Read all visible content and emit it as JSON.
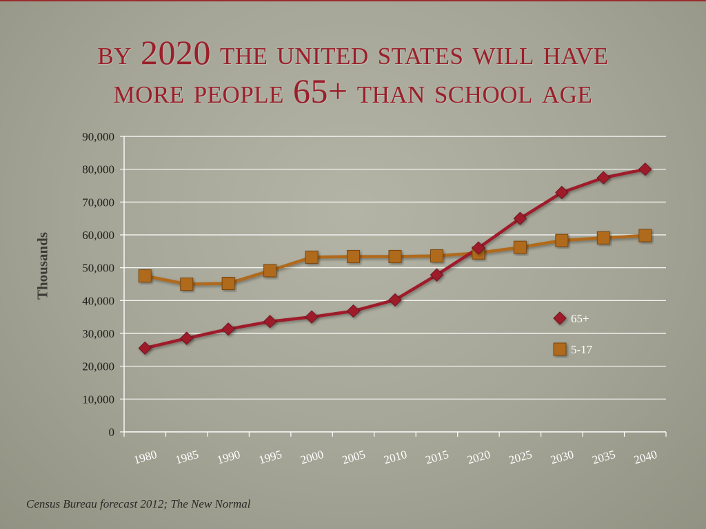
{
  "slide": {
    "title_line1": "By 2020 the United States will have",
    "title_line2": "more people 65+ than school age",
    "source": "Census Bureau forecast 2012; The New Normal"
  },
  "colors": {
    "series_65": "#9e1b2b",
    "series_517": "#b06a1e",
    "title": "#9a1f2a",
    "gridline": "#ffffff"
  },
  "chart_data": {
    "type": "line",
    "ylabel": "Thousands",
    "xlabel": "",
    "ylim": [
      0,
      90000
    ],
    "yticks": [
      0,
      10000,
      20000,
      30000,
      40000,
      50000,
      60000,
      70000,
      80000,
      90000
    ],
    "ytick_labels": [
      "0",
      "10,000",
      "20,000",
      "30,000",
      "40,000",
      "50,000",
      "60,000",
      "70,000",
      "80,000",
      "90,000"
    ],
    "categories": [
      "1980",
      "1985",
      "1990",
      "1995",
      "2000",
      "2005",
      "2010",
      "2015",
      "2020",
      "2025",
      "2030",
      "2035",
      "2040"
    ],
    "grid": true,
    "legend_position": "right",
    "series": [
      {
        "name": "65+",
        "marker": "diamond",
        "values": [
          25500,
          28500,
          31300,
          33600,
          35000,
          36800,
          40200,
          47800,
          56000,
          65000,
          72900,
          77400,
          80000
        ]
      },
      {
        "name": "5-17",
        "marker": "square",
        "values": [
          47500,
          45000,
          45200,
          49100,
          53200,
          53400,
          53400,
          53600,
          54500,
          56200,
          58300,
          59100,
          59800
        ]
      }
    ]
  }
}
